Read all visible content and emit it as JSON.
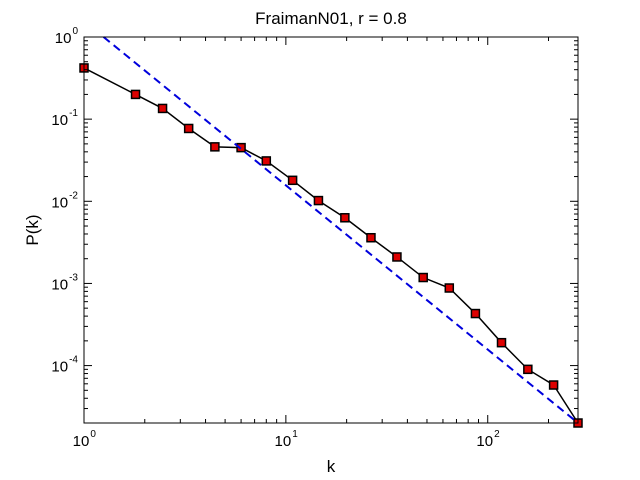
{
  "chart_data": {
    "type": "line",
    "title": "FraimanN01, r = 0.8",
    "xlabel": "k",
    "ylabel": "P(k)",
    "xscale": "log",
    "yscale": "log",
    "xlim": [
      1,
      280
    ],
    "ylim": [
      2e-05,
      1
    ],
    "grid": false,
    "x_ticks": [
      1,
      10,
      100
    ],
    "x_tick_labels": [
      {
        "base": "10",
        "exp": "0"
      },
      {
        "base": "10",
        "exp": "1"
      },
      {
        "base": "10",
        "exp": "2"
      }
    ],
    "y_ticks": [
      1,
      0.1,
      0.01,
      0.001,
      0.0001
    ],
    "y_tick_labels": [
      {
        "base": "10",
        "exp": "0"
      },
      {
        "base": "10",
        "exp": "-1"
      },
      {
        "base": "10",
        "exp": "-2"
      },
      {
        "base": "10",
        "exp": "-3"
      },
      {
        "base": "10",
        "exp": "-4"
      }
    ],
    "series": [
      {
        "style": "solid line with square markers",
        "color": "#000000",
        "marker_color": "#dd0000",
        "x": [
          1.0,
          1.8,
          2.45,
          3.3,
          4.45,
          6.0,
          8.0,
          10.8,
          14.5,
          19.6,
          26.4,
          35.5,
          47.9,
          64.5,
          86.9,
          117,
          158,
          212,
          280
        ],
        "y": [
          0.42,
          0.2,
          0.135,
          0.077,
          0.046,
          0.045,
          0.031,
          0.018,
          0.0102,
          0.0063,
          0.0036,
          0.0021,
          0.00118,
          0.00088,
          0.00043,
          0.00019,
          9e-05,
          5.8e-05,
          2e-05
        ]
      },
      {
        "style": "dashed line",
        "color": "#0000dd",
        "x": [
          1.25,
          280
        ],
        "y": [
          1.0,
          2e-05
        ]
      }
    ]
  }
}
